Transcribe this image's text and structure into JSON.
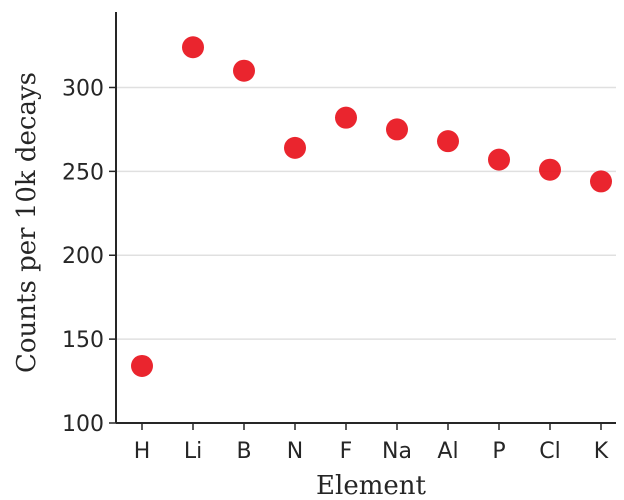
{
  "chart_data": {
    "type": "scatter",
    "xlabel": "Element",
    "ylabel": "Counts per 10k decays",
    "categories": [
      "H",
      "Li",
      "B",
      "N",
      "F",
      "Na",
      "Al",
      "P",
      "Cl",
      "K"
    ],
    "series": [
      {
        "values": [
          134,
          324,
          310,
          264,
          282,
          275,
          268,
          257,
          251,
          244
        ]
      }
    ],
    "ylim": [
      100,
      345
    ],
    "yticks": [
      100,
      150,
      200,
      250,
      300
    ],
    "grid": "horizontal",
    "marker_color": "#e8121c",
    "gridline_color": "#e0e0e0",
    "axis_color": "#262626"
  }
}
